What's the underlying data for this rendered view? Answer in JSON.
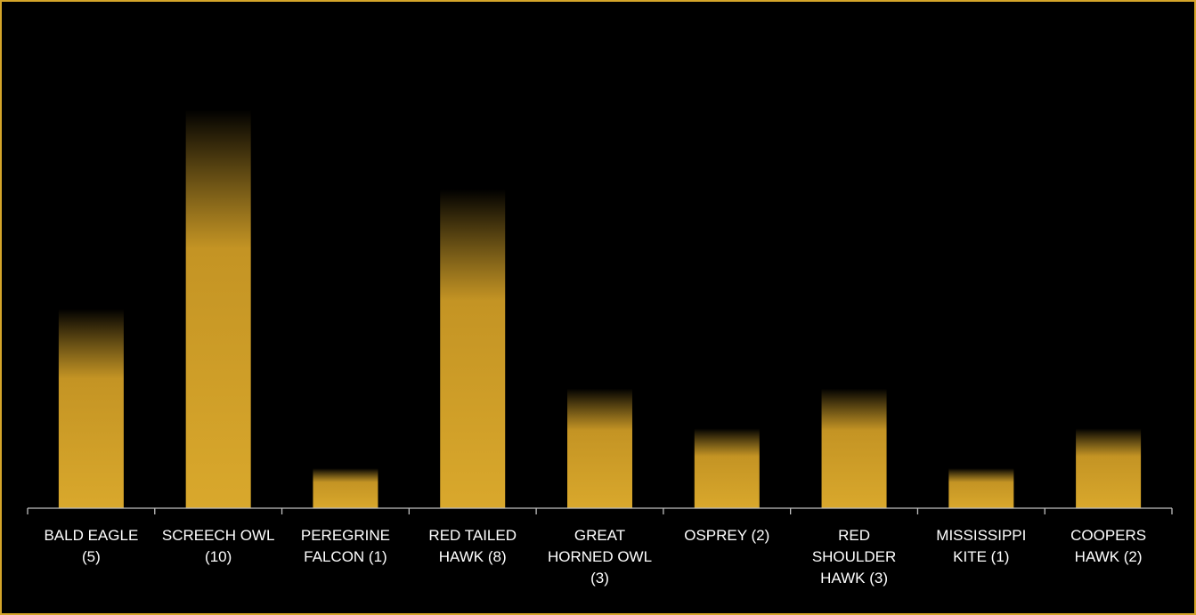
{
  "colors": {
    "border": "#d4a52a",
    "bar": "#d9a82c",
    "axis": "#bfbfbf",
    "text": "#ffffff",
    "background": "#000000"
  },
  "chart_data": {
    "type": "bar",
    "title": "",
    "xlabel": "",
    "ylabel": "",
    "grid": false,
    "legend": "none",
    "ylim": [
      0,
      10
    ],
    "categories": [
      [
        "BALD EAGLE",
        "(5)"
      ],
      [
        "SCREECH OWL",
        "(10)"
      ],
      [
        "PEREGRINE",
        "FALCON (1)"
      ],
      [
        "RED TAILED",
        "HAWK (8)"
      ],
      [
        "GREAT",
        "HORNED OWL",
        "(3)"
      ],
      [
        "OSPREY (2)"
      ],
      [
        "RED",
        "SHOULDER",
        "HAWK (3)"
      ],
      [
        "MISSISSIPPI",
        "KITE (1)"
      ],
      [
        "COOPERS",
        "HAWK (2)"
      ]
    ],
    "values": [
      5,
      10,
      1,
      8,
      3,
      2,
      3,
      1,
      2
    ]
  }
}
